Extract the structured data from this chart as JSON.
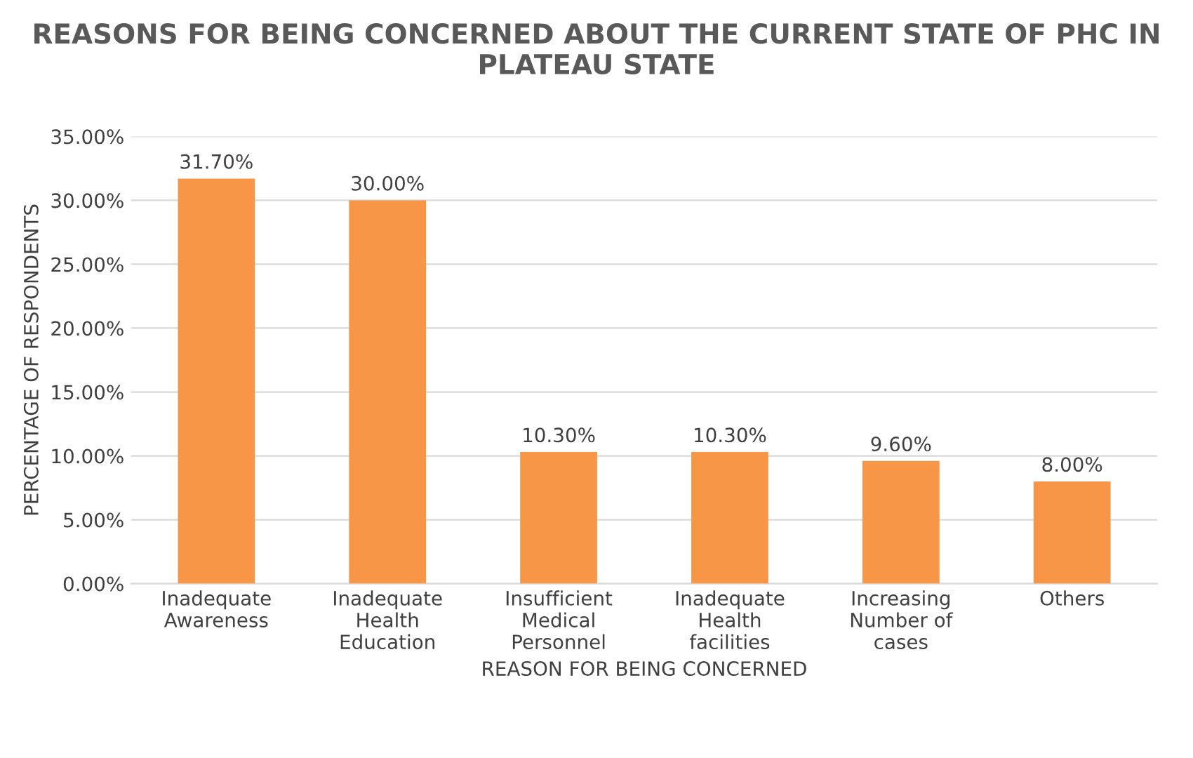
{
  "chart_data": {
    "type": "bar",
    "title": "REASONS FOR BEING CONCERNED ABOUT THE CURRENT STATE OF PHC IN PLATEAU STATE",
    "xlabel": "REASON FOR BEING CONCERNED",
    "ylabel": "PERCENTAGE OF RESPONDENTS",
    "categories": [
      "Inadequate\nAwareness",
      "Inadequate\nHealth\nEducation",
      "Insufficient\nMedical\nPersonnel",
      "Inadequate\nHealth\nfacilities",
      "Increasing\nNumber of\ncases",
      "Others"
    ],
    "values": [
      31.7,
      30.0,
      10.3,
      10.3,
      9.6,
      8.0
    ],
    "value_labels": [
      "31.70%",
      "30.00%",
      "10.30%",
      "10.30%",
      "9.60%",
      "8.00%"
    ],
    "color": "#f79646",
    "ylim": [
      0,
      35
    ],
    "yticks": [
      {
        "value": 0,
        "label": "0.00%"
      },
      {
        "value": 5,
        "label": "5.00%"
      },
      {
        "value": 10,
        "label": "10.00%"
      },
      {
        "value": 15,
        "label": "15.00%"
      },
      {
        "value": 20,
        "label": "20.00%"
      },
      {
        "value": 25,
        "label": "25.00%"
      },
      {
        "value": 30,
        "label": "30.00%"
      },
      {
        "value": 35,
        "label": "35.00%"
      }
    ],
    "grid": "y"
  }
}
